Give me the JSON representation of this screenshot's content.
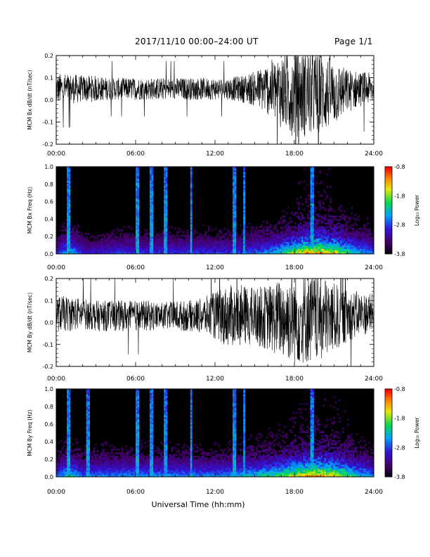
{
  "header": {
    "title": "2017/11/10   00:00–24:00 UT",
    "page": "Page 1/1"
  },
  "xlabel": "Universal Time (hh:mm)",
  "x_ticks": [
    "00:00",
    "06:00",
    "12:00",
    "18:00",
    "24:00"
  ],
  "chart_data": [
    {
      "id": "bx_ts",
      "type": "line",
      "ylabel": "MCM Bx dB/dt (nT/sec)",
      "xlim": [
        0,
        24
      ],
      "ylim": [
        -0.2,
        0.2
      ],
      "yticks": [
        "-0.2",
        "-0.1",
        "0.0",
        "0.1",
        "0.2"
      ],
      "series": [
        {
          "x": [
            0,
            1,
            2,
            3,
            4,
            5,
            6,
            7,
            8,
            9,
            10,
            11,
            12,
            13,
            14,
            15,
            16,
            17,
            18,
            19,
            20,
            21,
            22,
            23,
            24
          ],
          "center": [
            0.05,
            0.05,
            0.05,
            0.05,
            0.05,
            0.05,
            0.05,
            0.05,
            0.05,
            0.05,
            0.05,
            0.05,
            0.05,
            0.05,
            0.05,
            0.05,
            0.05,
            0.04,
            0.03,
            0.03,
            0.03,
            0.03,
            0.04,
            0.05,
            0.05
          ],
          "amplitude": [
            0.07,
            0.07,
            0.06,
            0.06,
            0.05,
            0.05,
            0.05,
            0.05,
            0.05,
            0.05,
            0.05,
            0.05,
            0.05,
            0.05,
            0.06,
            0.08,
            0.12,
            0.17,
            0.2,
            0.2,
            0.19,
            0.15,
            0.1,
            0.08,
            0.07
          ]
        }
      ]
    },
    {
      "id": "bx_spec",
      "type": "heatmap",
      "ylabel": "MCM Bx Freq (Hz)",
      "xlim": [
        0,
        24
      ],
      "ylim": [
        0,
        1.0
      ],
      "yticks": [
        "0.0",
        "0.2",
        "0.4",
        "0.6",
        "0.8",
        "1.0"
      ],
      "colorbar": {
        "label": "Log₁₀ Power",
        "range": [
          -3.8,
          -0.8
        ],
        "ticks": [
          "-0.8",
          "-1.8",
          "-2.8",
          "-3.8"
        ]
      },
      "activity_by_hour": [
        0.3,
        0.55,
        0.3,
        0.3,
        0.35,
        0.35,
        0.35,
        0.35,
        0.35,
        0.35,
        0.35,
        0.35,
        0.35,
        0.35,
        0.4,
        0.45,
        0.55,
        0.7,
        0.85,
        0.9,
        0.85,
        0.65,
        0.5,
        0.4
      ],
      "spike_hours": [
        0.9,
        6.1,
        7.2,
        8.3,
        10.2,
        13.5,
        14.2,
        19.3
      ]
    },
    {
      "id": "by_ts",
      "type": "line",
      "ylabel": "MCM By dB/dt (nT/sec)",
      "xlim": [
        0,
        24
      ],
      "ylim": [
        -0.2,
        0.2
      ],
      "yticks": [
        "-0.2",
        "-0.1",
        "0.0",
        "0.1",
        "0.2"
      ],
      "series": [
        {
          "x": [
            0,
            1,
            2,
            3,
            4,
            5,
            6,
            7,
            8,
            9,
            10,
            11,
            12,
            13,
            14,
            15,
            16,
            17,
            18,
            19,
            20,
            21,
            22,
            23,
            24
          ],
          "center": [
            0.04,
            0.04,
            0.04,
            0.03,
            0.03,
            0.03,
            0.03,
            0.03,
            0.03,
            0.03,
            0.03,
            0.03,
            0.03,
            0.03,
            0.03,
            0.03,
            0.02,
            0.02,
            0.02,
            0.02,
            0.02,
            0.02,
            0.03,
            0.04,
            0.04
          ],
          "amplitude": [
            0.08,
            0.08,
            0.07,
            0.07,
            0.07,
            0.07,
            0.07,
            0.07,
            0.06,
            0.07,
            0.07,
            0.08,
            0.11,
            0.14,
            0.14,
            0.13,
            0.15,
            0.18,
            0.21,
            0.21,
            0.2,
            0.16,
            0.12,
            0.1,
            0.09
          ]
        }
      ]
    },
    {
      "id": "by_spec",
      "type": "heatmap",
      "ylabel": "MCM By Freq (Hz)",
      "xlim": [
        0,
        24
      ],
      "ylim": [
        0,
        1.0
      ],
      "yticks": [
        "0.0",
        "0.2",
        "0.4",
        "0.6",
        "0.8",
        "1.0"
      ],
      "colorbar": {
        "label": "Log₁₀ Power",
        "range": [
          -3.8,
          -0.8
        ],
        "ticks": [
          "-0.8",
          "-1.8",
          "-2.8",
          "-3.8"
        ]
      },
      "activity_by_hour": [
        0.4,
        0.6,
        0.4,
        0.45,
        0.45,
        0.45,
        0.45,
        0.45,
        0.45,
        0.45,
        0.45,
        0.45,
        0.45,
        0.5,
        0.55,
        0.6,
        0.65,
        0.75,
        0.85,
        0.9,
        0.85,
        0.7,
        0.55,
        0.45
      ],
      "spike_hours": [
        0.9,
        2.4,
        6.1,
        7.2,
        8.3,
        10.2,
        13.5,
        14.2,
        19.3
      ]
    }
  ]
}
